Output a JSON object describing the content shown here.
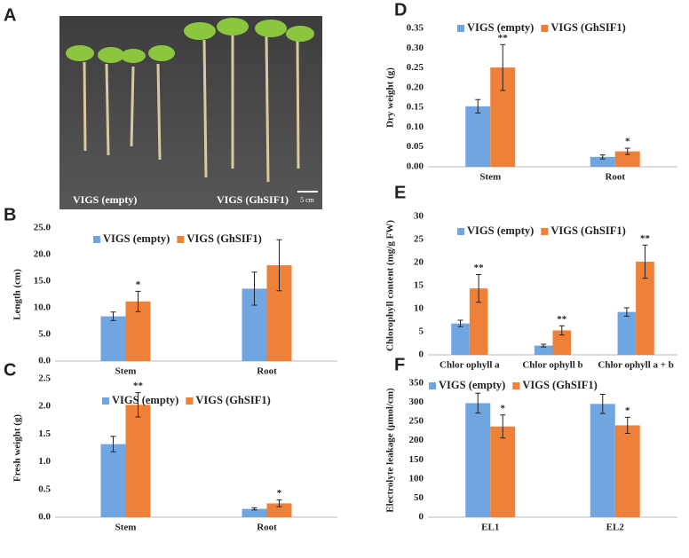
{
  "photo_panel": {
    "label": "A",
    "captions": [
      "VIGS (empty)",
      "VIGS (GhSIF1)"
    ],
    "scale_bar": "5 cm"
  },
  "chart_data": [
    {
      "type": "bar",
      "label": "B",
      "y_label": "Length (cm)",
      "categories": [
        "Stem",
        "Root"
      ],
      "series": [
        {
          "name": "VIGS (empty)",
          "color": "#6fa5e0",
          "values": [
            8.4,
            13.6
          ],
          "errors": [
            0.8,
            3.1
          ],
          "significance": [
            null,
            null
          ]
        },
        {
          "name": "VIGS (GhSIF1)",
          "color": "#ef8038",
          "values": [
            11.2,
            18.0
          ],
          "errors": [
            1.9,
            4.8
          ],
          "significance": [
            "*",
            null
          ]
        }
      ],
      "ylim": [
        0,
        25
      ],
      "yticks": [
        {
          "value": 0,
          "label": "0.0"
        },
        {
          "value": 5,
          "label": "5.0"
        },
        {
          "value": 10,
          "label": "10.0"
        },
        {
          "value": 15,
          "label": "15.0"
        },
        {
          "value": 20,
          "label": "20.0"
        },
        {
          "value": 25,
          "label": "25.0"
        }
      ]
    },
    {
      "type": "bar",
      "label": "C",
      "y_label": "Fresh weight (g)",
      "categories": [
        "Stem",
        "Root"
      ],
      "series": [
        {
          "name": "VIGS (empty)",
          "color": "#6fa5e0",
          "values": [
            1.32,
            0.15
          ],
          "errors": [
            0.14,
            0.02
          ],
          "significance": [
            null,
            null
          ]
        },
        {
          "name": "VIGS (GhSIF1)",
          "color": "#ef8038",
          "values": [
            2.03,
            0.25
          ],
          "errors": [
            0.22,
            0.06
          ],
          "significance": [
            "**",
            "*"
          ]
        }
      ],
      "ylim": [
        0,
        2.5
      ],
      "yticks": [
        {
          "value": 0,
          "label": "0.0"
        },
        0.5,
        {
          "value": 1,
          "label": "1.0"
        },
        1.5,
        {
          "value": 2,
          "label": "2.0"
        },
        2.5
      ]
    },
    {
      "type": "bar",
      "label": "D",
      "y_label": "Dry weight (g)",
      "categories": [
        "Stem",
        "Root"
      ],
      "series": [
        {
          "name": "VIGS (empty)",
          "color": "#6fa5e0",
          "values": [
            0.153,
            0.025
          ],
          "errors": [
            0.017,
            0.005
          ],
          "significance": [
            null,
            null
          ]
        },
        {
          "name": "VIGS (GhSIF1)",
          "color": "#ef8038",
          "values": [
            0.251,
            0.039
          ],
          "errors": [
            0.058,
            0.008
          ],
          "significance": [
            "**",
            "*"
          ]
        }
      ],
      "ylim": [
        0,
        0.35
      ],
      "yticks": [
        {
          "value": 0,
          "label": "0.00"
        },
        0.05,
        {
          "value": 0.1,
          "label": "0.10"
        },
        0.15,
        {
          "value": 0.2,
          "label": "0.20"
        },
        0.25,
        {
          "value": 0.3,
          "label": "0.30"
        },
        0.35
      ]
    },
    {
      "type": "bar",
      "label": "E",
      "y_label": "Chlorophyll content (mg/g FW)",
      "categories": [
        "Chlor ophyll a",
        "Chlor ophyll b",
        "Chlor ophyll a + b"
      ],
      "series": [
        {
          "name": "VIGS (empty)",
          "color": "#6fa5e0",
          "values": [
            6.8,
            2.0,
            9.3
          ],
          "errors": [
            0.7,
            0.3,
            0.9
          ],
          "significance": [
            null,
            null,
            null
          ]
        },
        {
          "name": "VIGS (GhSIF1)",
          "color": "#ef8038",
          "values": [
            14.4,
            5.3,
            20.2
          ],
          "errors": [
            3.0,
            1.0,
            3.6
          ],
          "significance": [
            "**",
            "**",
            "**"
          ]
        }
      ],
      "ylim": [
        0,
        30
      ],
      "yticks": [
        0,
        5,
        10,
        15,
        20,
        25,
        30
      ]
    },
    {
      "type": "bar",
      "label": "F",
      "y_label": "Electrolyte leakage (μmol/cm)",
      "categories": [
        "EL1",
        "EL2"
      ],
      "series": [
        {
          "name": "VIGS (empty)",
          "color": "#6fa5e0",
          "values": [
            298,
            296
          ],
          "errors": [
            26,
            25
          ],
          "significance": [
            null,
            null
          ]
        },
        {
          "name": "VIGS (GhSIF1)",
          "color": "#ef8038",
          "values": [
            237,
            240
          ],
          "errors": [
            30,
            21
          ],
          "significance": [
            "*",
            "*"
          ]
        }
      ],
      "ylim": [
        0,
        350
      ],
      "yticks": [
        0,
        50,
        100,
        150,
        200,
        250,
        300,
        350
      ]
    }
  ]
}
